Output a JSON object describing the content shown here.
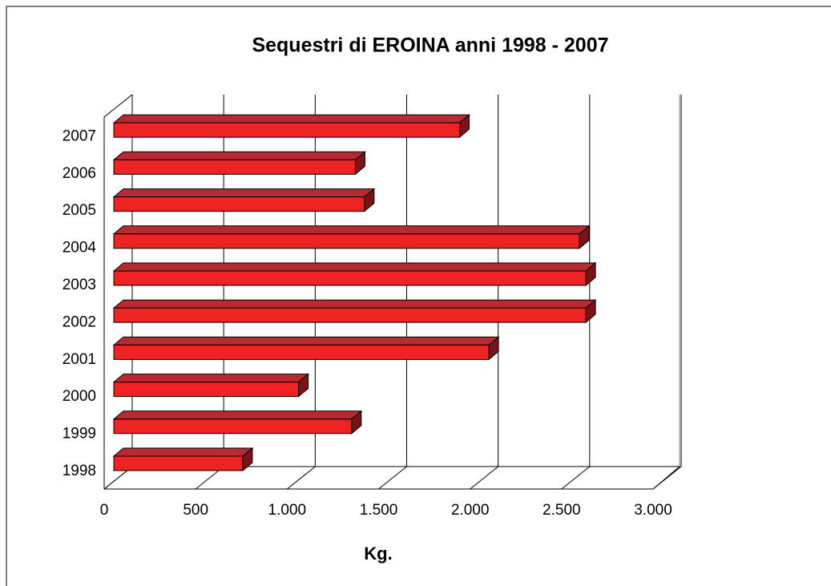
{
  "chart_data": {
    "type": "bar3d_horizontal",
    "title": "Sequestri di EROINA anni 1998 - 2007",
    "x_label": "Kg.",
    "categories": [
      "1998",
      "1999",
      "2000",
      "2001",
      "2002",
      "2003",
      "2004",
      "2005",
      "2006",
      "2007"
    ],
    "values": [
      705,
      1300,
      1010,
      2050,
      2580,
      2580,
      2545,
      1370,
      1320,
      1890
    ],
    "color": "#ee2222",
    "xlim": [
      0,
      3000
    ],
    "xticks": [
      0,
      500,
      {
        "value": 1000,
        "label": "1.000"
      },
      {
        "value": 1500,
        "label": "1.500"
      },
      {
        "value": 2000,
        "label": "2.000"
      },
      {
        "value": 2500,
        "label": "2.500"
      },
      {
        "value": 3000,
        "label": "3.000"
      }
    ],
    "grid": true
  }
}
